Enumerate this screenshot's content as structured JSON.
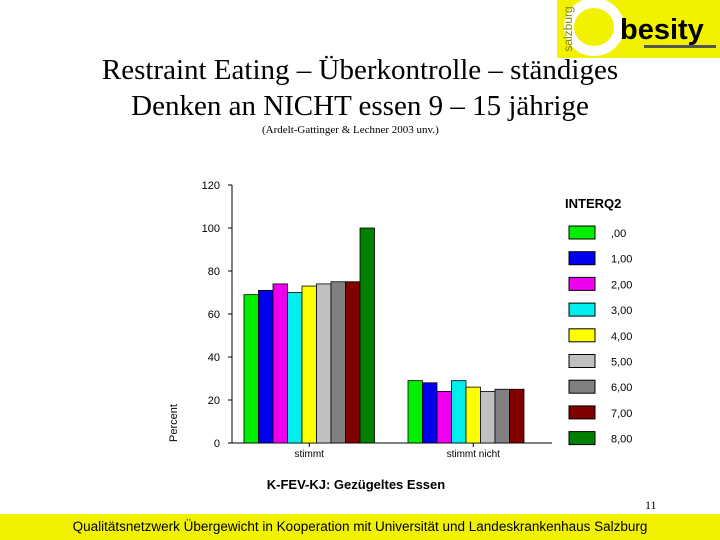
{
  "logo": {
    "side_text": "salzburg",
    "main_text": "besity",
    "accent_color": "#f2f200"
  },
  "header": {
    "title_line1": "Restraint Eating – Überkontrolle – ständiges",
    "title_line2": "Denken an NICHT essen 9 – 15 jährige",
    "citation": "(Ardelt-Gattinger & Lechner 2003 unv.)"
  },
  "chart_data": {
    "type": "bar",
    "title": "",
    "xlabel": "K-FEV-KJ: Gezügeltes Essen",
    "ylabel": "Percent",
    "ylim": [
      0,
      120
    ],
    "yticks": [
      0,
      20,
      40,
      60,
      80,
      100,
      120
    ],
    "categories": [
      "stimmt",
      "stimmt nicht"
    ],
    "legend_title": "INTERQ2",
    "legend_position": "right",
    "grid": false,
    "series": [
      {
        "name": ",00",
        "color": "#00ee00",
        "values": [
          69,
          29
        ]
      },
      {
        "name": "1,00",
        "color": "#0000ee",
        "values": [
          71,
          28
        ]
      },
      {
        "name": "2,00",
        "color": "#ee00ee",
        "values": [
          74,
          24
        ]
      },
      {
        "name": "3,00",
        "color": "#00eeee",
        "values": [
          70,
          29
        ]
      },
      {
        "name": "4,00",
        "color": "#ffff00",
        "values": [
          73,
          26
        ]
      },
      {
        "name": "5,00",
        "color": "#c0c0c0",
        "values": [
          74,
          24
        ]
      },
      {
        "name": "6,00",
        "color": "#808080",
        "values": [
          75,
          25
        ]
      },
      {
        "name": "7,00",
        "color": "#800000",
        "values": [
          75,
          25
        ]
      },
      {
        "name": "8,00",
        "color": "#008000",
        "values": [
          100,
          0
        ]
      }
    ]
  },
  "page_number": "11",
  "footer": {
    "text": "Qualitätsnetzwerk Übergewicht in Kooperation mit Universität und Landeskrankenhaus Salzburg"
  }
}
